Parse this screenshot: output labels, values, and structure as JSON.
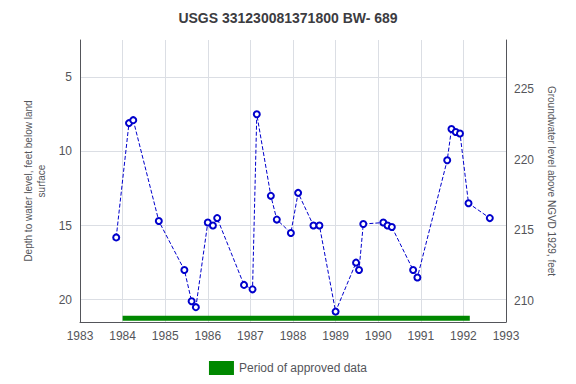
{
  "chart_data": {
    "type": "line",
    "title": "USGS 331230081371800 BW- 689",
    "ylabel": "Depth to water level, feet below land\nsurface",
    "y2label": "Groundwater level above NGVD 1929, feet",
    "xlim": [
      1983,
      1993
    ],
    "xticks": [
      1983,
      1984,
      1985,
      1986,
      1987,
      1988,
      1989,
      1990,
      1991,
      1992,
      1993
    ],
    "ylim": [
      21.5,
      2.5
    ],
    "yticks": [
      5,
      10,
      15,
      20
    ],
    "y2lim": [
      208.5,
      228.5
    ],
    "y2ticks": [
      210,
      215,
      220,
      225
    ],
    "grid": true,
    "legend": "bottom",
    "series": [
      {
        "type": "line",
        "color": "#0000CC",
        "marker": "open circle",
        "line_style": "dashed",
        "x": [
          1983.85,
          1984.15,
          1984.25,
          1984.85,
          1985.45,
          1985.62,
          1985.72,
          1986.0,
          1986.12,
          1986.22,
          1986.85,
          1987.05,
          1987.15,
          1987.48,
          1987.62,
          1987.95,
          1988.12,
          1988.48,
          1988.62,
          1989.0,
          1989.48,
          1989.55,
          1989.65,
          1990.12,
          1990.22,
          1990.32,
          1990.82,
          1990.92,
          1991.62,
          1991.72,
          1991.82,
          1991.92,
          1992.12,
          1992.62
        ],
        "values": [
          15.8,
          8.1,
          7.9,
          14.7,
          18.0,
          20.1,
          20.5,
          14.8,
          15.0,
          14.5,
          19.0,
          19.3,
          7.5,
          13.0,
          14.6,
          15.5,
          12.8,
          15.0,
          15.0,
          20.8,
          17.5,
          18.0,
          14.9,
          14.8,
          15.0,
          15.1,
          18.0,
          18.5,
          10.6,
          8.5,
          8.7,
          8.8,
          13.5,
          14.5
        ]
      },
      {
        "name": "Period of approved data",
        "type": "line",
        "color": "#008800",
        "marker": "none",
        "line_style": "solid",
        "x": [
          1984.0,
          1992.15
        ],
        "values": [
          21.25,
          21.25
        ]
      }
    ]
  }
}
